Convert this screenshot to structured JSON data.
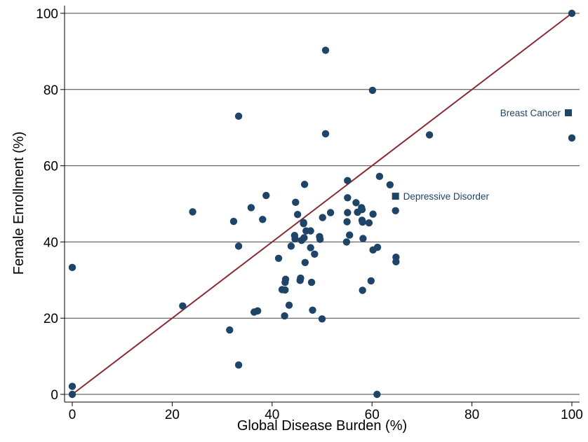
{
  "chart_data": {
    "type": "scatter",
    "xlabel": "Global Disease Burden (%)",
    "ylabel": "Female Enrollment (%)",
    "xlim": [
      0,
      100
    ],
    "ylim": [
      0,
      100
    ],
    "xticks": [
      0,
      20,
      40,
      60,
      80,
      100
    ],
    "yticks": [
      0,
      20,
      40,
      60,
      80,
      100
    ],
    "grid": "horizontal",
    "reference_line": {
      "from": [
        0,
        0
      ],
      "to": [
        100,
        100
      ],
      "color": "#8b2a35"
    },
    "marker_color": "#1e4468",
    "points": [
      [
        0,
        33.3
      ],
      [
        0,
        2.1
      ],
      [
        0,
        0
      ],
      [
        22.1,
        23.2
      ],
      [
        24.1,
        47.9
      ],
      [
        31.5,
        16.9
      ],
      [
        32.3,
        45.4
      ],
      [
        33.3,
        73
      ],
      [
        33.3,
        38.9
      ],
      [
        33.3,
        7.7
      ],
      [
        35.8,
        49
      ],
      [
        36.4,
        21.6
      ],
      [
        37.1,
        21.9
      ],
      [
        38.1,
        45.9
      ],
      [
        38.8,
        52.2
      ],
      [
        41.3,
        35.7
      ],
      [
        42,
        27.5
      ],
      [
        42.5,
        20.6
      ],
      [
        42.6,
        27.4
      ],
      [
        42.6,
        29.4
      ],
      [
        42.7,
        30.2
      ],
      [
        43.4,
        23.4
      ],
      [
        43.8,
        38.9
      ],
      [
        44.5,
        41.7
      ],
      [
        44.6,
        40.8
      ],
      [
        44.7,
        50.4
      ],
      [
        45.1,
        47.2
      ],
      [
        45.6,
        29.9
      ],
      [
        45.7,
        30.5
      ],
      [
        45.9,
        40.4
      ],
      [
        46.3,
        44.8
      ],
      [
        46.3,
        45.1
      ],
      [
        46.4,
        41.1
      ],
      [
        46.5,
        55.1
      ],
      [
        46.6,
        34.6
      ],
      [
        46.8,
        42.9
      ],
      [
        47.7,
        38.5
      ],
      [
        47.7,
        42.9
      ],
      [
        47.9,
        29.4
      ],
      [
        48.1,
        22.1
      ],
      [
        48.5,
        36.8
      ],
      [
        49.5,
        41.4
      ],
      [
        49.6,
        40.7
      ],
      [
        50,
        19.8
      ],
      [
        50.1,
        46.4
      ],
      [
        50.7,
        90.3
      ],
      [
        50.7,
        68.4
      ],
      [
        51.7,
        47.7
      ],
      [
        54.9,
        40
      ],
      [
        55,
        45.3
      ],
      [
        55.1,
        56.1
      ],
      [
        55.1,
        51.6
      ],
      [
        55.1,
        47.7
      ],
      [
        55.5,
        41.8
      ],
      [
        56.8,
        50.3
      ],
      [
        57.1,
        47.8
      ],
      [
        57.9,
        49
      ],
      [
        58,
        48.5
      ],
      [
        58,
        45.7
      ],
      [
        58.1,
        45.2
      ],
      [
        58.1,
        27.3
      ],
      [
        58.2,
        40.9
      ],
      [
        59.4,
        45
      ],
      [
        59.8,
        29.8
      ],
      [
        60.1,
        79.8
      ],
      [
        60.2,
        47.3
      ],
      [
        60.2,
        37.9
      ],
      [
        61,
        0
      ],
      [
        61.1,
        38.6
      ],
      [
        61.5,
        57.2
      ],
      [
        63.6,
        55
      ],
      [
        64.7,
        48.2
      ],
      [
        64.8,
        36
      ],
      [
        64.8,
        34.8
      ],
      [
        71.5,
        68.1
      ],
      [
        100,
        100
      ],
      [
        100,
        67.3
      ]
    ],
    "highlighted": [
      {
        "label": "Breast Cancer",
        "x": 99.3,
        "y": 73.9
      },
      {
        "label": "Depressive Disorder",
        "x": 64.7,
        "y": 52
      }
    ]
  }
}
